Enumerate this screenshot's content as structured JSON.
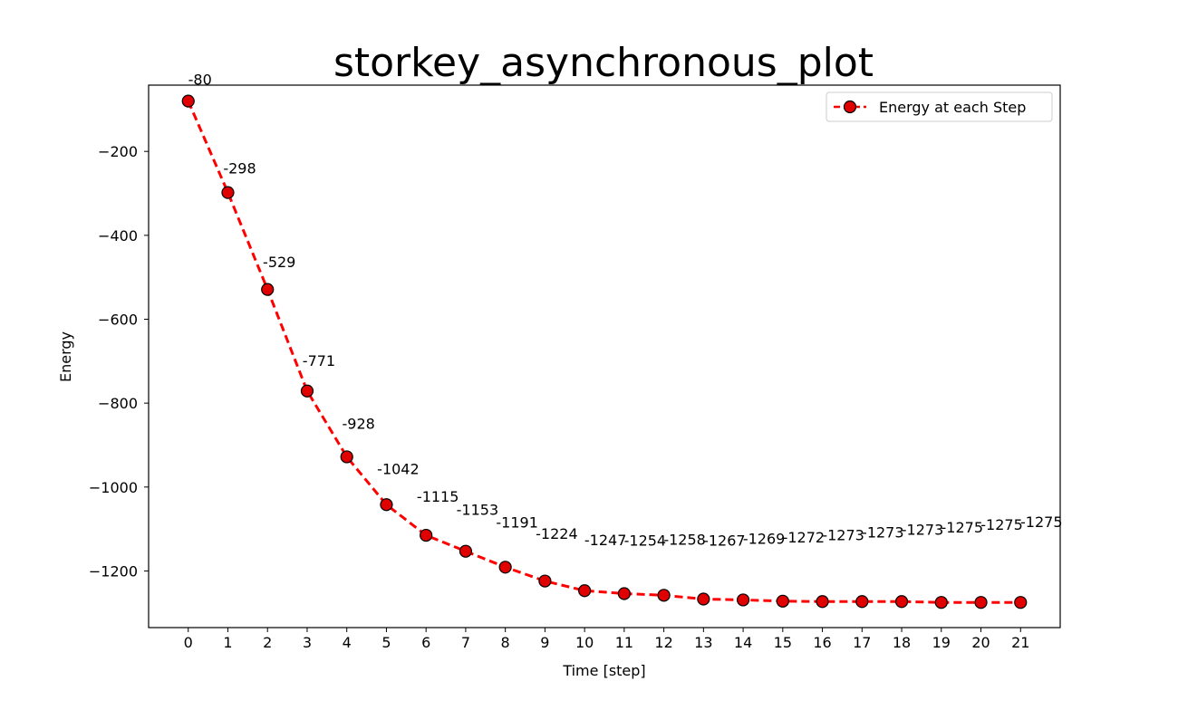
{
  "chart_data": {
    "type": "line",
    "title": "storkey_asynchronous_plot",
    "xlabel": "Time [step]",
    "ylabel": "Energy",
    "x": [
      0,
      1,
      2,
      3,
      4,
      5,
      6,
      7,
      8,
      9,
      10,
      11,
      12,
      13,
      14,
      15,
      16,
      17,
      18,
      19,
      20,
      21
    ],
    "xticks": [
      "0",
      "1",
      "2",
      "3",
      "4",
      "5",
      "6",
      "7",
      "8",
      "9",
      "10",
      "11",
      "12",
      "13",
      "14",
      "15",
      "16",
      "17",
      "18",
      "19",
      "20",
      "21"
    ],
    "yticks": [
      -200,
      -400,
      -600,
      -800,
      -1000,
      -1200
    ],
    "ytick_labels": [
      "−200",
      "−400",
      "−600",
      "−800",
      "−1000",
      "−1200"
    ],
    "xlim": [
      -1,
      22
    ],
    "ylim": [
      -1335,
      -42
    ],
    "grid": false,
    "legend_position": "top-right",
    "series": [
      {
        "name": "Energy at each Step",
        "color": "#ff0000",
        "marker_face": "#e00000",
        "marker_edge": "#000000",
        "linestyle": "dashed",
        "values": [
          -80,
          -298,
          -529,
          -771,
          -928,
          -1042,
          -1115,
          -1153,
          -1191,
          -1224,
          -1247,
          -1254,
          -1258,
          -1267,
          -1269,
          -1272,
          -1273,
          -1273,
          -1273,
          -1275,
          -1275,
          -1275
        ],
        "data_labels": [
          "-80",
          "-298",
          "-529",
          "-771",
          "-928",
          "-1042",
          "-1115",
          "-1153",
          "-1191",
          "-1224",
          "-1247",
          "-1254",
          "-1258",
          "-1267",
          "-1269",
          "-1272",
          "-1273",
          "-1273",
          "-1273",
          "-1275",
          "-1275",
          "-1275"
        ]
      }
    ]
  }
}
